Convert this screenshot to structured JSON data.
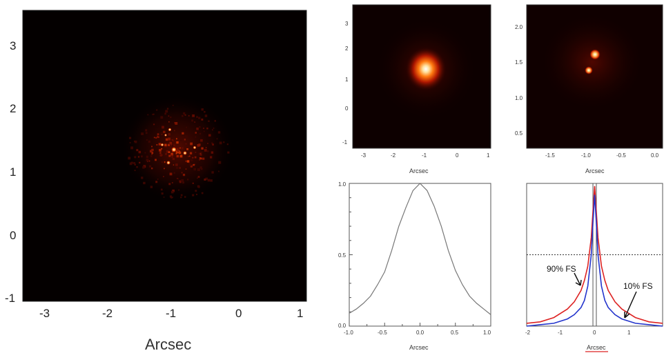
{
  "chart_data": [
    {
      "type": "heatmap",
      "panel": "large-speckle-image",
      "xlabel": "Arcsec",
      "ylabel": "",
      "xlim": [
        -3.4,
        1.1
      ],
      "ylim": [
        -1.05,
        3.45
      ],
      "xticks": [
        "-3",
        "-2",
        "-1",
        "0",
        "1"
      ],
      "yticks": [
        "-1",
        "0",
        "1",
        "2",
        "3"
      ],
      "source_center": [
        -0.95,
        1.25
      ],
      "colormap": "black-red-yellow-white"
    },
    {
      "type": "heatmap",
      "panel": "top-middle-blurred-image",
      "xlabel": "Arcsec",
      "ylabel": "",
      "xlim": [
        -3.5,
        1.05
      ],
      "ylim": [
        -1.2,
        3.3
      ],
      "xticks": [
        "-3",
        "-2",
        "-1",
        "0",
        "1"
      ],
      "yticks": [
        "-1",
        "0",
        "1",
        "2",
        "3"
      ],
      "source_center": [
        -1.0,
        1.35
      ]
    },
    {
      "type": "heatmap",
      "panel": "top-right-resolved-pair",
      "xlabel": "Arcsec",
      "ylabel": "",
      "xlim": [
        -1.85,
        0.05
      ],
      "ylim": [
        0.3,
        2.3
      ],
      "xticks": [
        "-1.5",
        "-1.0",
        "-0.5",
        "0.0"
      ],
      "yticks": [
        "0.5",
        "1.0",
        "1.5",
        "2.0"
      ],
      "sources": [
        {
          "x": -0.82,
          "y": 1.62
        },
        {
          "x": -0.92,
          "y": 1.4
        }
      ]
    },
    {
      "type": "line",
      "panel": "bottom-middle-profile",
      "xlabel": "Arcsec",
      "ylabel": "",
      "xlim": [
        -1.0,
        1.0
      ],
      "ylim": [
        0.0,
        1.0
      ],
      "xticks": [
        "-1.0",
        "-0.5",
        "0.0",
        "0.5",
        "1.0"
      ],
      "yticks": [
        "0.0",
        "0.5",
        "1.0"
      ],
      "grid": false,
      "series": [
        {
          "color": "#777777",
          "x": [
            -1.0,
            -0.9,
            -0.8,
            -0.7,
            -0.6,
            -0.5,
            -0.4,
            -0.3,
            -0.2,
            -0.1,
            0.0,
            0.1,
            0.2,
            0.3,
            0.4,
            0.5,
            0.6,
            0.7,
            0.8,
            0.9,
            1.0
          ],
          "y": [
            0.09,
            0.12,
            0.16,
            0.21,
            0.29,
            0.38,
            0.53,
            0.7,
            0.83,
            0.95,
            1.0,
            0.95,
            0.84,
            0.7,
            0.53,
            0.39,
            0.29,
            0.21,
            0.16,
            0.12,
            0.08
          ]
        }
      ]
    },
    {
      "type": "line",
      "panel": "bottom-right-profile-comparison",
      "xlabel": "Arcsec",
      "ylabel": "",
      "xlim": [
        -2,
        2
      ],
      "ylim": [
        0.0,
        1.0
      ],
      "xticks": [
        "-2",
        "-1",
        "0",
        "1"
      ],
      "hline": 0.5,
      "vlines": [
        -0.05,
        0.05
      ],
      "annotations": [
        {
          "text": "90% FS",
          "points_to": [
            -0.3,
            0.17
          ]
        },
        {
          "text": "10% FS",
          "points_to": [
            0.72,
            0.05
          ]
        }
      ],
      "series": [
        {
          "color": "#dd2222",
          "x": [
            -2.0,
            -1.6,
            -1.2,
            -0.8,
            -0.6,
            -0.4,
            -0.3,
            -0.2,
            -0.1,
            -0.05,
            0.0,
            0.05,
            0.1,
            0.2,
            0.3,
            0.4,
            0.6,
            0.8,
            1.2,
            1.6,
            2.0
          ],
          "y": [
            0.02,
            0.03,
            0.06,
            0.12,
            0.17,
            0.25,
            0.32,
            0.42,
            0.62,
            0.8,
            0.98,
            0.8,
            0.62,
            0.42,
            0.32,
            0.25,
            0.17,
            0.12,
            0.06,
            0.03,
            0.02
          ]
        },
        {
          "color": "#2233cc",
          "x": [
            -2.0,
            -1.6,
            -1.2,
            -0.8,
            -0.6,
            -0.4,
            -0.3,
            -0.2,
            -0.1,
            -0.05,
            0.0,
            0.05,
            0.1,
            0.2,
            0.3,
            0.4,
            0.6,
            0.8,
            1.2,
            1.6,
            2.0
          ],
          "y": [
            0.0,
            0.01,
            0.02,
            0.05,
            0.08,
            0.13,
            0.18,
            0.28,
            0.5,
            0.72,
            0.92,
            0.72,
            0.5,
            0.28,
            0.18,
            0.13,
            0.08,
            0.05,
            0.02,
            0.01,
            0.0
          ]
        }
      ]
    }
  ]
}
